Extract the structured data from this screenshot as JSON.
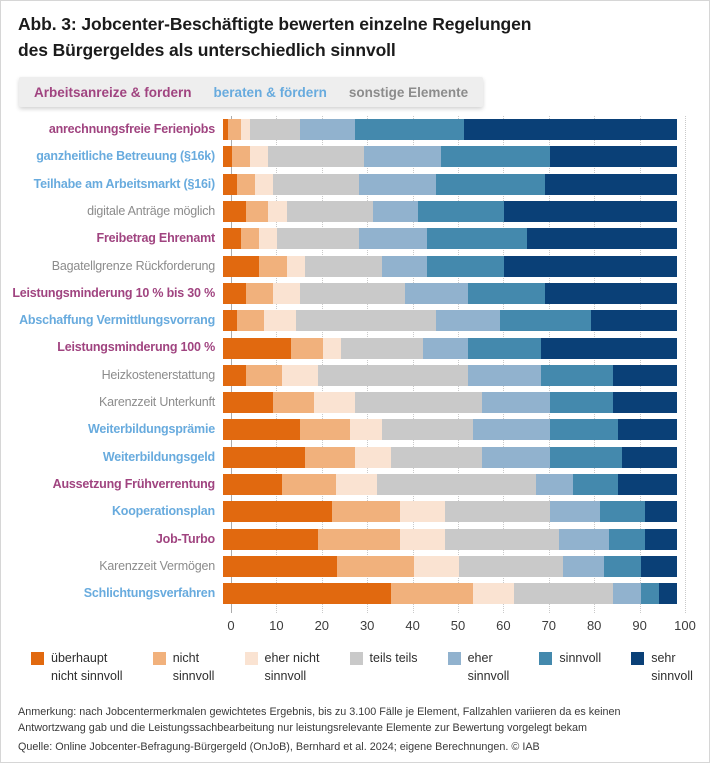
{
  "title": "Abb. 3: Jobcenter-Beschäftigte bewerten einzelne Regelungen\ndes Bürgergeldes als unterschiedlich sinnvoll",
  "group_legend": {
    "background": "#eeeeee",
    "items": [
      {
        "key": "anreize",
        "label": "Arbeitsanreize & fordern",
        "color": "#a04480"
      },
      {
        "key": "beraten",
        "label": "beraten & fördern",
        "color": "#68abde"
      },
      {
        "key": "sonstige",
        "label": "sonstige Elemente",
        "color": "#8c8c8c"
      }
    ]
  },
  "chart_data": {
    "type": "bar",
    "orientation": "horizontal",
    "stacked": true,
    "unit": "percent",
    "xlim": [
      0,
      100
    ],
    "x_ticks": [
      0,
      10,
      20,
      30,
      40,
      50,
      60,
      70,
      80,
      90,
      100
    ],
    "grid": "dotted-vertical",
    "legend_position": "bottom",
    "categories": [
      {
        "label": "anrechnungsfreie Ferienjobs",
        "group": "anreize"
      },
      {
        "label": "ganzheitliche Betreuung (§16k)",
        "group": "beraten"
      },
      {
        "label": "Teilhabe am Arbeitsmarkt (§16i)",
        "group": "beraten"
      },
      {
        "label": "digitale Anträge möglich",
        "group": "sonstige"
      },
      {
        "label": "Freibetrag Ehrenamt",
        "group": "anreize"
      },
      {
        "label": "Bagatellgrenze Rückforderung",
        "group": "sonstige"
      },
      {
        "label": "Leistungsminderung 10 % bis 30 %",
        "group": "anreize"
      },
      {
        "label": "Abschaffung Vermittlungsvorrang",
        "group": "beraten"
      },
      {
        "label": "Leistungsminderung 100 %",
        "group": "anreize"
      },
      {
        "label": "Heizkostenerstattung",
        "group": "sonstige"
      },
      {
        "label": "Karenzzeit Unterkunft",
        "group": "sonstige"
      },
      {
        "label": "Weiterbildungsprämie",
        "group": "beraten"
      },
      {
        "label": "Weiterbildungsgeld",
        "group": "beraten"
      },
      {
        "label": "Aussetzung Frühverrentung",
        "group": "anreize"
      },
      {
        "label": "Kooperationsplan",
        "group": "beraten"
      },
      {
        "label": "Job-Turbo",
        "group": "anreize"
      },
      {
        "label": "Karenzzeit Vermögen",
        "group": "sonstige"
      },
      {
        "label": "Schlichtungsverfahren",
        "group": "beraten"
      }
    ],
    "series": [
      {
        "name": "überhaupt nicht sinnvoll",
        "legend_label": "überhaupt\nnicht sinnvoll",
        "color": "#e1690f",
        "values": [
          1,
          2,
          3,
          5,
          4,
          8,
          5,
          3,
          15,
          5,
          11,
          17,
          18,
          13,
          24,
          21,
          25,
          37
        ]
      },
      {
        "name": "nicht sinnvoll",
        "legend_label": "nicht\nsinnvoll",
        "color": "#f1b17c",
        "values": [
          3,
          4,
          4,
          5,
          4,
          6,
          6,
          6,
          7,
          8,
          9,
          11,
          11,
          12,
          15,
          18,
          17,
          18
        ]
      },
      {
        "name": "eher nicht sinnvoll",
        "legend_label": "eher nicht\nsinnvoll",
        "color": "#fae3d2",
        "values": [
          2,
          4,
          4,
          4,
          4,
          4,
          6,
          7,
          4,
          8,
          9,
          7,
          8,
          9,
          10,
          10,
          10,
          9
        ]
      },
      {
        "name": "teils teils",
        "legend_label": "teils teils",
        "color": "#c9c9c9",
        "values": [
          11,
          21,
          19,
          19,
          18,
          17,
          23,
          31,
          18,
          33,
          28,
          20,
          20,
          35,
          23,
          25,
          23,
          22
        ]
      },
      {
        "name": "eher sinnvoll",
        "legend_label": "eher\nsinnvoll",
        "color": "#91b2ce",
        "values": [
          12,
          17,
          17,
          10,
          15,
          10,
          14,
          14,
          10,
          16,
          15,
          17,
          15,
          8,
          11,
          11,
          9,
          6
        ]
      },
      {
        "name": "sinnvoll",
        "legend_label": "sinnvoll",
        "color": "#4489ad",
        "values": [
          24,
          24,
          24,
          19,
          22,
          17,
          17,
          20,
          16,
          16,
          14,
          15,
          16,
          10,
          10,
          8,
          8,
          4
        ]
      },
      {
        "name": "sehr sinnvoll",
        "legend_label": "sehr\nsinnvoll",
        "color": "#0a4077",
        "values": [
          47,
          28,
          29,
          38,
          33,
          38,
          29,
          19,
          30,
          14,
          14,
          13,
          12,
          13,
          7,
          7,
          8,
          4
        ]
      }
    ]
  },
  "footnote": {
    "note": "Anmerkung: nach Jobcentermerkmalen gewichtetes Ergebnis, bis zu 3.100 Fälle je Element, Fallzahlen variieren da es keinen\nAntwortzwang gab und die Leistungssachbearbeitung nur leistungsrelevante Elemente zur Bewertung vorgelegt bekam",
    "source": "Quelle: Online Jobcenter-Befragung-Bürgergeld (OnJoB), Bernhard et al. 2024; eigene Berechnungen. © IAB"
  }
}
